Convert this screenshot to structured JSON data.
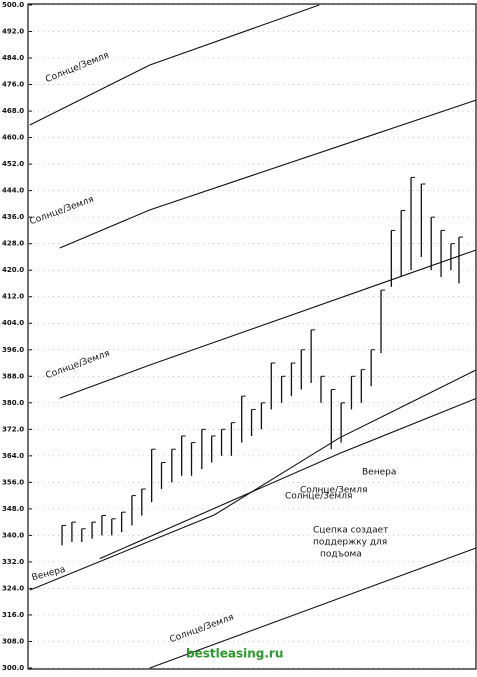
{
  "chart_data": {
    "type": "bar-lines",
    "ylim": [
      300,
      500
    ],
    "yticks": [
      {
        "value": 300,
        "label": "300.0"
      },
      {
        "value": 308,
        "label": "308.0"
      },
      {
        "value": 316,
        "label": "316.0"
      },
      {
        "value": 324,
        "label": "324.0"
      },
      {
        "value": 332,
        "label": "332.0"
      },
      {
        "value": 340,
        "label": "340.0"
      },
      {
        "value": 348,
        "label": "348.0"
      },
      {
        "value": 356,
        "label": "356.0"
      },
      {
        "value": 364,
        "label": "364.0"
      },
      {
        "value": 372,
        "label": "372.0"
      },
      {
        "value": 380,
        "label": "380.0"
      },
      {
        "value": 388,
        "label": "388.0"
      },
      {
        "value": 396,
        "label": "396.0"
      },
      {
        "value": 404,
        "label": "404.0"
      },
      {
        "value": 412,
        "label": "412.0"
      },
      {
        "value": 420,
        "label": "420.0"
      },
      {
        "value": 428,
        "label": "428.0"
      },
      {
        "value": 436,
        "label": "436.0"
      },
      {
        "value": 444,
        "label": "444.0"
      },
      {
        "value": 452,
        "label": "452.0"
      },
      {
        "value": 460,
        "label": "460.0"
      },
      {
        "value": 468,
        "label": "468.0"
      },
      {
        "value": 476,
        "label": "476.0"
      },
      {
        "value": 484,
        "label": "484.0"
      },
      {
        "value": 492,
        "label": "492.0"
      },
      {
        "value": 500,
        "label": "500.0"
      }
    ],
    "xlim": [
      0,
      100
    ],
    "grid": true,
    "color": "#111111",
    "bars": {
      "x": [
        7.6,
        9.8,
        12,
        14.3,
        16.5,
        18.7,
        20.9,
        23.2,
        25.4,
        27.6,
        29.8,
        32.1,
        34.3,
        36.5,
        38.8,
        41,
        43.2,
        45.4,
        47.7,
        49.9,
        52.1,
        54.3,
        56.6,
        58.8,
        61,
        63.2,
        65.4,
        67.7,
        69.9,
        72.2,
        74.4,
        76.6,
        78.8,
        81.1,
        83.3,
        85.5,
        87.8,
        90,
        92.2,
        94.4,
        96.2
      ],
      "high": [
        343,
        344,
        342,
        344,
        346,
        345,
        347,
        352,
        354,
        366,
        362,
        366,
        370,
        368,
        372,
        370,
        372,
        374,
        382,
        378,
        380,
        392,
        388,
        392,
        396,
        402,
        388,
        384,
        380,
        388,
        390,
        396,
        414,
        432,
        438,
        448,
        446,
        436,
        432,
        428,
        430
      ],
      "low": [
        337,
        338,
        338,
        339,
        340,
        340,
        341,
        343,
        346,
        350,
        354,
        356,
        358,
        358,
        360,
        362,
        364,
        364,
        368,
        370,
        372,
        378,
        380,
        382,
        384,
        386,
        380,
        366,
        368,
        378,
        380,
        385,
        395,
        415,
        418,
        420,
        424,
        420,
        418,
        420,
        416
      ]
    },
    "series": [
      {
        "name": "Солнце/Земля",
        "x": [
          0.4,
          27.2,
          65
        ],
        "values": [
          463.8,
          481.9,
          500
        ]
      },
      {
        "name": "Солнце/Земля",
        "x": [
          7.1,
          27.2,
          100
        ],
        "values": [
          426.7,
          438.2,
          471.3
        ]
      },
      {
        "name": "Солнце/Земля",
        "x": [
          7.1,
          27.2,
          100
        ],
        "values": [
          381.4,
          391.4,
          426.1
        ]
      },
      {
        "name": "Венера",
        "x": [
          0.4,
          41.6,
          69.5,
          100
        ],
        "values": [
          323.5,
          346.2,
          369.4,
          389.9
        ]
      },
      {
        "name": "Солнце/Земля",
        "x": [
          16,
          69.5,
          100
        ],
        "values": [
          333,
          364.7,
          381.3
        ]
      },
      {
        "name": "Солнце/Земля",
        "x": [
          27.2,
          100
        ],
        "values": [
          300,
          336.2
        ]
      }
    ],
    "annotations": [
      "Венера",
      "Солнце/Земля",
      "Сцепка создает",
      "поддержку для",
      "подъома",
      "bestleasing.ru"
    ]
  }
}
